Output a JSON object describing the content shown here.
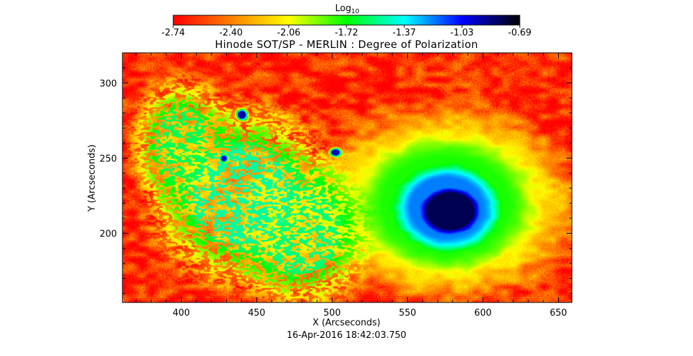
{
  "chart_data": {
    "type": "heatmap",
    "title": "Hinode SOT/SP - MERLIN : Degree of Polarization",
    "xlabel": "X (Arcseconds)",
    "ylabel": "Y (Arcseconds)",
    "timestamp": "16-Apr-2016 18:42:03.750",
    "xlim": [
      361,
      659
    ],
    "ylim": [
      154,
      320
    ],
    "x_ticks": [
      400,
      450,
      500,
      550,
      600,
      650
    ],
    "y_ticks": [
      200,
      250,
      300
    ],
    "colorbar": {
      "title": "Log",
      "title_subscript": "10",
      "range": [
        -2.74,
        -0.69
      ],
      "tick_labels": [
        "-2.74",
        "-2.40",
        "-2.06",
        "-1.72",
        "-1.37",
        "-1.03",
        "-0.69"
      ],
      "colormap": [
        "#ff0000",
        "#ff8000",
        "#ffff00",
        "#00ff00",
        "#00ffff",
        "#0000ff",
        "#000000"
      ]
    },
    "features": [
      {
        "kind": "sunspot umbra",
        "x": 578,
        "y": 215,
        "rx": 28,
        "ry": 22,
        "level": -0.8
      },
      {
        "kind": "sunspot penumbra",
        "x": 575,
        "y": 218,
        "rx": 42,
        "ry": 35,
        "level": -1.2
      },
      {
        "kind": "plage halo",
        "x": 575,
        "y": 220,
        "rx": 75,
        "ry": 55,
        "level": -1.75
      },
      {
        "kind": "pore",
        "x": 440,
        "y": 279,
        "rx": 4,
        "ry": 4,
        "level": -0.9
      },
      {
        "kind": "pore",
        "x": 502,
        "y": 254,
        "rx": 4,
        "ry": 3,
        "level": -0.9
      },
      {
        "kind": "pore",
        "x": 428,
        "y": 250,
        "rx": 3,
        "ry": 3,
        "level": -1.0
      },
      {
        "kind": "network field",
        "x": 440,
        "y": 225,
        "rx": 55,
        "ry": 55,
        "level": -1.5
      },
      {
        "kind": "network field",
        "x": 400,
        "y": 260,
        "rx": 30,
        "ry": 40,
        "level": -1.6
      },
      {
        "kind": "network field",
        "x": 480,
        "y": 200,
        "rx": 40,
        "ry": 45,
        "level": -1.55
      }
    ]
  }
}
